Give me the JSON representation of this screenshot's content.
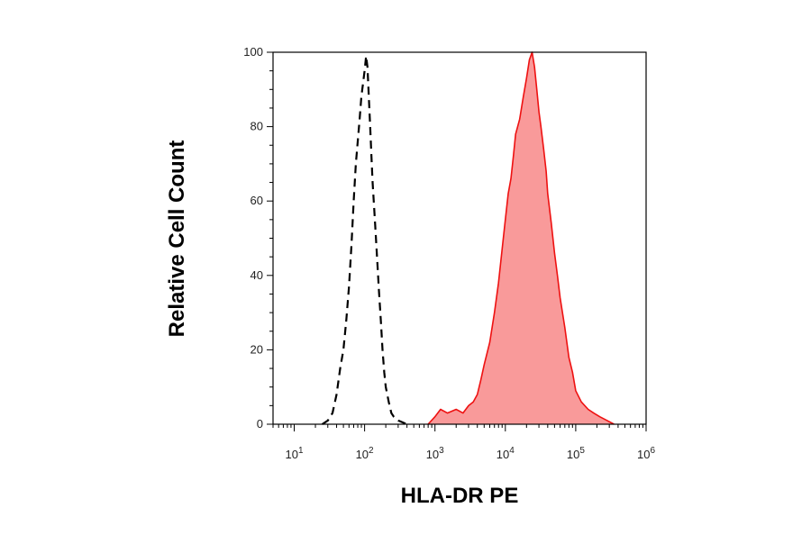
{
  "chart_data": {
    "type": "area",
    "title": "",
    "xlabel": "HLA-DR PE",
    "ylabel": "Relative Cell Count",
    "x_scale": "log",
    "xlim": [
      5,
      1000000
    ],
    "ylim": [
      0,
      100
    ],
    "x_ticks": [
      {
        "value": 10,
        "base": "10",
        "exp": "1"
      },
      {
        "value": 100,
        "base": "10",
        "exp": "2"
      },
      {
        "value": 1000,
        "base": "10",
        "exp": "3"
      },
      {
        "value": 10000,
        "base": "10",
        "exp": "4"
      },
      {
        "value": 100000,
        "base": "10",
        "exp": "5"
      },
      {
        "value": 1000000,
        "base": "10",
        "exp": "6"
      }
    ],
    "y_ticks": [
      "0",
      "20",
      "40",
      "60",
      "80",
      "100"
    ],
    "grid": false,
    "legend": "none",
    "series": [
      {
        "style": "dashed-line",
        "color": "#000000",
        "points": [
          [
            25,
            0
          ],
          [
            30,
            1
          ],
          [
            35,
            3
          ],
          [
            40,
            8
          ],
          [
            45,
            15
          ],
          [
            50,
            20
          ],
          [
            55,
            28
          ],
          [
            60,
            37
          ],
          [
            65,
            48
          ],
          [
            70,
            60
          ],
          [
            75,
            70
          ],
          [
            80,
            76
          ],
          [
            85,
            82
          ],
          [
            90,
            88
          ],
          [
            100,
            95
          ],
          [
            105,
            99
          ],
          [
            110,
            96
          ],
          [
            115,
            88
          ],
          [
            120,
            80
          ],
          [
            125,
            72
          ],
          [
            130,
            65
          ],
          [
            140,
            55
          ],
          [
            150,
            45
          ],
          [
            160,
            36
          ],
          [
            170,
            28
          ],
          [
            180,
            20
          ],
          [
            190,
            14
          ],
          [
            200,
            10
          ],
          [
            220,
            6
          ],
          [
            240,
            3
          ],
          [
            260,
            2
          ],
          [
            300,
            1
          ],
          [
            400,
            0
          ]
        ]
      },
      {
        "style": "filled-area",
        "color": "#ee1111",
        "fill": "#f99a9a",
        "points": [
          [
            800,
            0
          ],
          [
            1000,
            2
          ],
          [
            1200,
            4
          ],
          [
            1500,
            3
          ],
          [
            2000,
            4
          ],
          [
            2500,
            3
          ],
          [
            3000,
            5
          ],
          [
            3500,
            6
          ],
          [
            4000,
            8
          ],
          [
            4500,
            12
          ],
          [
            5000,
            16
          ],
          [
            6000,
            22
          ],
          [
            7000,
            30
          ],
          [
            8000,
            38
          ],
          [
            9000,
            47
          ],
          [
            10000,
            55
          ],
          [
            11000,
            62
          ],
          [
            12000,
            66
          ],
          [
            13000,
            72
          ],
          [
            14000,
            78
          ],
          [
            16000,
            82
          ],
          [
            18000,
            88
          ],
          [
            20000,
            93
          ],
          [
            22000,
            98
          ],
          [
            24000,
            100
          ],
          [
            26000,
            96
          ],
          [
            28000,
            90
          ],
          [
            30000,
            84
          ],
          [
            32000,
            80
          ],
          [
            35000,
            74
          ],
          [
            38000,
            68
          ],
          [
            40000,
            62
          ],
          [
            45000,
            54
          ],
          [
            50000,
            46
          ],
          [
            55000,
            40
          ],
          [
            60000,
            34
          ],
          [
            70000,
            26
          ],
          [
            80000,
            18
          ],
          [
            90000,
            14
          ],
          [
            100000,
            9
          ],
          [
            120000,
            6
          ],
          [
            150000,
            4
          ],
          [
            180000,
            3
          ],
          [
            220000,
            2
          ],
          [
            280000,
            1
          ],
          [
            350000,
            0
          ]
        ]
      }
    ]
  }
}
